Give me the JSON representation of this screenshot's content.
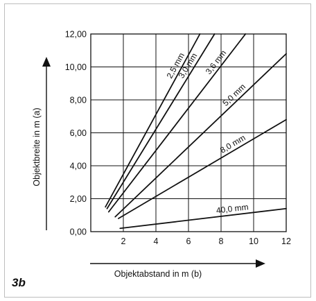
{
  "figure_label": "3b",
  "chart_data": {
    "type": "line",
    "xlabel": "Objektabstand in m (b)",
    "ylabel": "Objektbreite in m (a)",
    "xlim": [
      0,
      12
    ],
    "ylim": [
      0,
      12
    ],
    "x_ticks": [
      "2",
      "4",
      "6",
      "8",
      "10",
      "12"
    ],
    "y_ticks": [
      "0,00",
      "2,00",
      "4,00",
      "6,00",
      "8,00",
      "10,00",
      "12,00"
    ],
    "grid": true,
    "series": [
      {
        "name": "2,5 mm",
        "x": [
          0.9,
          6.7
        ],
        "y": [
          1.5,
          12.0
        ]
      },
      {
        "name": "3,0 mm",
        "x": [
          1.0,
          7.6
        ],
        "y": [
          1.4,
          12.0
        ]
      },
      {
        "name": "3,6 mm",
        "x": [
          1.1,
          9.5
        ],
        "y": [
          1.2,
          12.0
        ]
      },
      {
        "name": "5,0 mm",
        "x": [
          1.5,
          12.0
        ],
        "y": [
          0.9,
          10.8
        ]
      },
      {
        "name": "8,0 mm",
        "x": [
          1.7,
          12.0
        ],
        "y": [
          0.8,
          6.8
        ]
      },
      {
        "name": "40,0 mm",
        "x": [
          1.8,
          12.0
        ],
        "y": [
          0.2,
          1.4
        ]
      }
    ]
  }
}
